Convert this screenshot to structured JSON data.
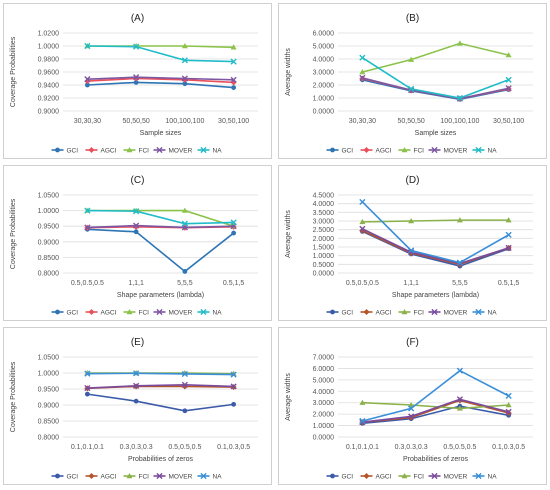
{
  "series_colors": {
    "GCI": "#2e75b6",
    "AGCI": "#e8505b",
    "FCI": "#8bc34a",
    "MOVER": "#7e57a2",
    "NA": "#22bcc8"
  },
  "series_colors_alt": {
    "GCI": "#3b5ba9",
    "AGCI": "#b5552b",
    "FCI": "#8bb24a",
    "MOVER": "#7a4b9c",
    "NA": "#3a8fd8"
  },
  "chart_data": [
    {
      "type": "line",
      "title": "(A)",
      "xlabel": "Sample sizes",
      "ylabel": "Coverage Probabilities",
      "categories": [
        "30,30,30",
        "50,50,50",
        "100,100,100",
        "30,50,100"
      ],
      "ylim": [
        0.9,
        1.02
      ],
      "yticks": [
        "0.9000",
        "0.9200",
        "0.9400",
        "0.9600",
        "0.9800",
        "1.0000",
        "1.0200"
      ],
      "palette": "default",
      "series": [
        {
          "name": "GCI",
          "values": [
            0.94,
            0.944,
            0.942,
            0.936
          ]
        },
        {
          "name": "AGCI",
          "values": [
            0.946,
            0.95,
            0.948,
            0.944
          ]
        },
        {
          "name": "FCI",
          "values": [
            1.0,
            1.0,
            1.0,
            0.998
          ]
        },
        {
          "name": "MOVER",
          "values": [
            0.949,
            0.952,
            0.95,
            0.948
          ]
        },
        {
          "name": "NA",
          "values": [
            1.0,
            0.999,
            0.978,
            0.976
          ]
        }
      ]
    },
    {
      "type": "line",
      "title": "(B)",
      "xlabel": "Sample sizes",
      "ylabel": "Average widths",
      "categories": [
        "30,30,30",
        "50,50,50",
        "100,100,100",
        "30,50,100"
      ],
      "ylim": [
        0,
        6
      ],
      "yticks": [
        "0.0000",
        "1.0000",
        "2.0000",
        "3.0000",
        "4.0000",
        "5.0000",
        "6.0000"
      ],
      "palette": "default",
      "series": [
        {
          "name": "GCI",
          "values": [
            2.4,
            1.55,
            0.9,
            1.65
          ]
        },
        {
          "name": "AGCI",
          "values": [
            2.5,
            1.6,
            0.95,
            1.7
          ]
        },
        {
          "name": "FCI",
          "values": [
            3.0,
            3.95,
            5.2,
            4.3
          ]
        },
        {
          "name": "MOVER",
          "values": [
            2.55,
            1.6,
            0.95,
            1.75
          ]
        },
        {
          "name": "NA",
          "values": [
            4.1,
            1.7,
            1.0,
            2.4
          ]
        }
      ]
    },
    {
      "type": "line",
      "title": "(C)",
      "xlabel": "Shape parameters (lambda)",
      "ylabel": "Coverage Probabilities",
      "categories": [
        "0.5,0.5,0.5",
        "1,1,1",
        "5,5,5",
        "0.5,1,5"
      ],
      "ylim": [
        0.8,
        1.05
      ],
      "yticks": [
        "0.8000",
        "0.8500",
        "0.9000",
        "0.9500",
        "1.0000",
        "1.0500"
      ],
      "palette": "default",
      "series": [
        {
          "name": "GCI",
          "values": [
            0.94,
            0.932,
            0.805,
            0.928
          ]
        },
        {
          "name": "AGCI",
          "values": [
            0.945,
            0.948,
            0.945,
            0.948
          ]
        },
        {
          "name": "FCI",
          "values": [
            1.0,
            1.0,
            1.0,
            0.95
          ]
        },
        {
          "name": "MOVER",
          "values": [
            0.946,
            0.952,
            0.946,
            0.95
          ]
        },
        {
          "name": "NA",
          "values": [
            1.0,
            0.998,
            0.958,
            0.962
          ]
        }
      ]
    },
    {
      "type": "line",
      "title": "(D)",
      "xlabel": "Shape parameters (lambda)",
      "ylabel": "Average widths",
      "categories": [
        "0.5,0.5,0.5",
        "1,1,1",
        "5,5,5",
        "0.5,1,5"
      ],
      "ylim": [
        0,
        4.5
      ],
      "yticks": [
        "0.0000",
        "0.5000",
        "1.0000",
        "1.5000",
        "2.0000",
        "2.5000",
        "3.0000",
        "3.5000",
        "4.0000",
        "4.5000"
      ],
      "palette": "alt",
      "series": [
        {
          "name": "GCI",
          "values": [
            2.4,
            1.1,
            0.4,
            1.4
          ]
        },
        {
          "name": "AGCI",
          "values": [
            2.45,
            1.15,
            0.5,
            1.45
          ]
        },
        {
          "name": "FCI",
          "values": [
            2.95,
            3.0,
            3.05,
            3.05
          ]
        },
        {
          "name": "MOVER",
          "values": [
            2.55,
            1.2,
            0.55,
            1.45
          ]
        },
        {
          "name": "NA",
          "values": [
            4.1,
            1.3,
            0.6,
            2.2
          ]
        }
      ]
    },
    {
      "type": "line",
      "title": "(E)",
      "xlabel": "Probabilities of zeros",
      "ylabel": "Coverage Probabilities",
      "categories": [
        "0.1,0.1,0.1",
        "0.3,0.3,0.3",
        "0.5,0.5,0.5",
        "0.1,0.3,0.5"
      ],
      "ylim": [
        0.8,
        1.05
      ],
      "yticks": [
        "0.8000",
        "0.8500",
        "0.9000",
        "0.9500",
        "1.0000",
        "1.0500"
      ],
      "palette": "alt",
      "series": [
        {
          "name": "GCI",
          "values": [
            0.934,
            0.912,
            0.882,
            0.902
          ]
        },
        {
          "name": "AGCI",
          "values": [
            0.952,
            0.958,
            0.958,
            0.956
          ]
        },
        {
          "name": "FCI",
          "values": [
            1.0,
            1.0,
            1.0,
            0.998
          ]
        },
        {
          "name": "MOVER",
          "values": [
            0.953,
            0.96,
            0.963,
            0.958
          ]
        },
        {
          "name": "NA",
          "values": [
            0.998,
            0.999,
            0.997,
            0.995
          ]
        }
      ]
    },
    {
      "type": "line",
      "title": "(F)",
      "xlabel": "Probabilities of zeros",
      "ylabel": "Average widths",
      "categories": [
        "0.1,0.1,0.1",
        "0.3,0.3,0.3",
        "0.5,0.5,0.5",
        "0.1,0.3,0.5"
      ],
      "ylim": [
        0,
        7
      ],
      "yticks": [
        "0.0000",
        "1.0000",
        "2.0000",
        "3.0000",
        "4.0000",
        "5.0000",
        "6.0000",
        "7.0000"
      ],
      "palette": "alt",
      "series": [
        {
          "name": "GCI",
          "values": [
            1.2,
            1.6,
            2.7,
            1.9
          ]
        },
        {
          "name": "AGCI",
          "values": [
            1.3,
            1.7,
            3.2,
            2.1
          ]
        },
        {
          "name": "FCI",
          "values": [
            3.0,
            2.8,
            2.5,
            2.8
          ]
        },
        {
          "name": "MOVER",
          "values": [
            1.3,
            1.8,
            3.3,
            2.2
          ]
        },
        {
          "name": "NA",
          "values": [
            1.4,
            2.5,
            5.8,
            3.6
          ]
        }
      ]
    }
  ]
}
